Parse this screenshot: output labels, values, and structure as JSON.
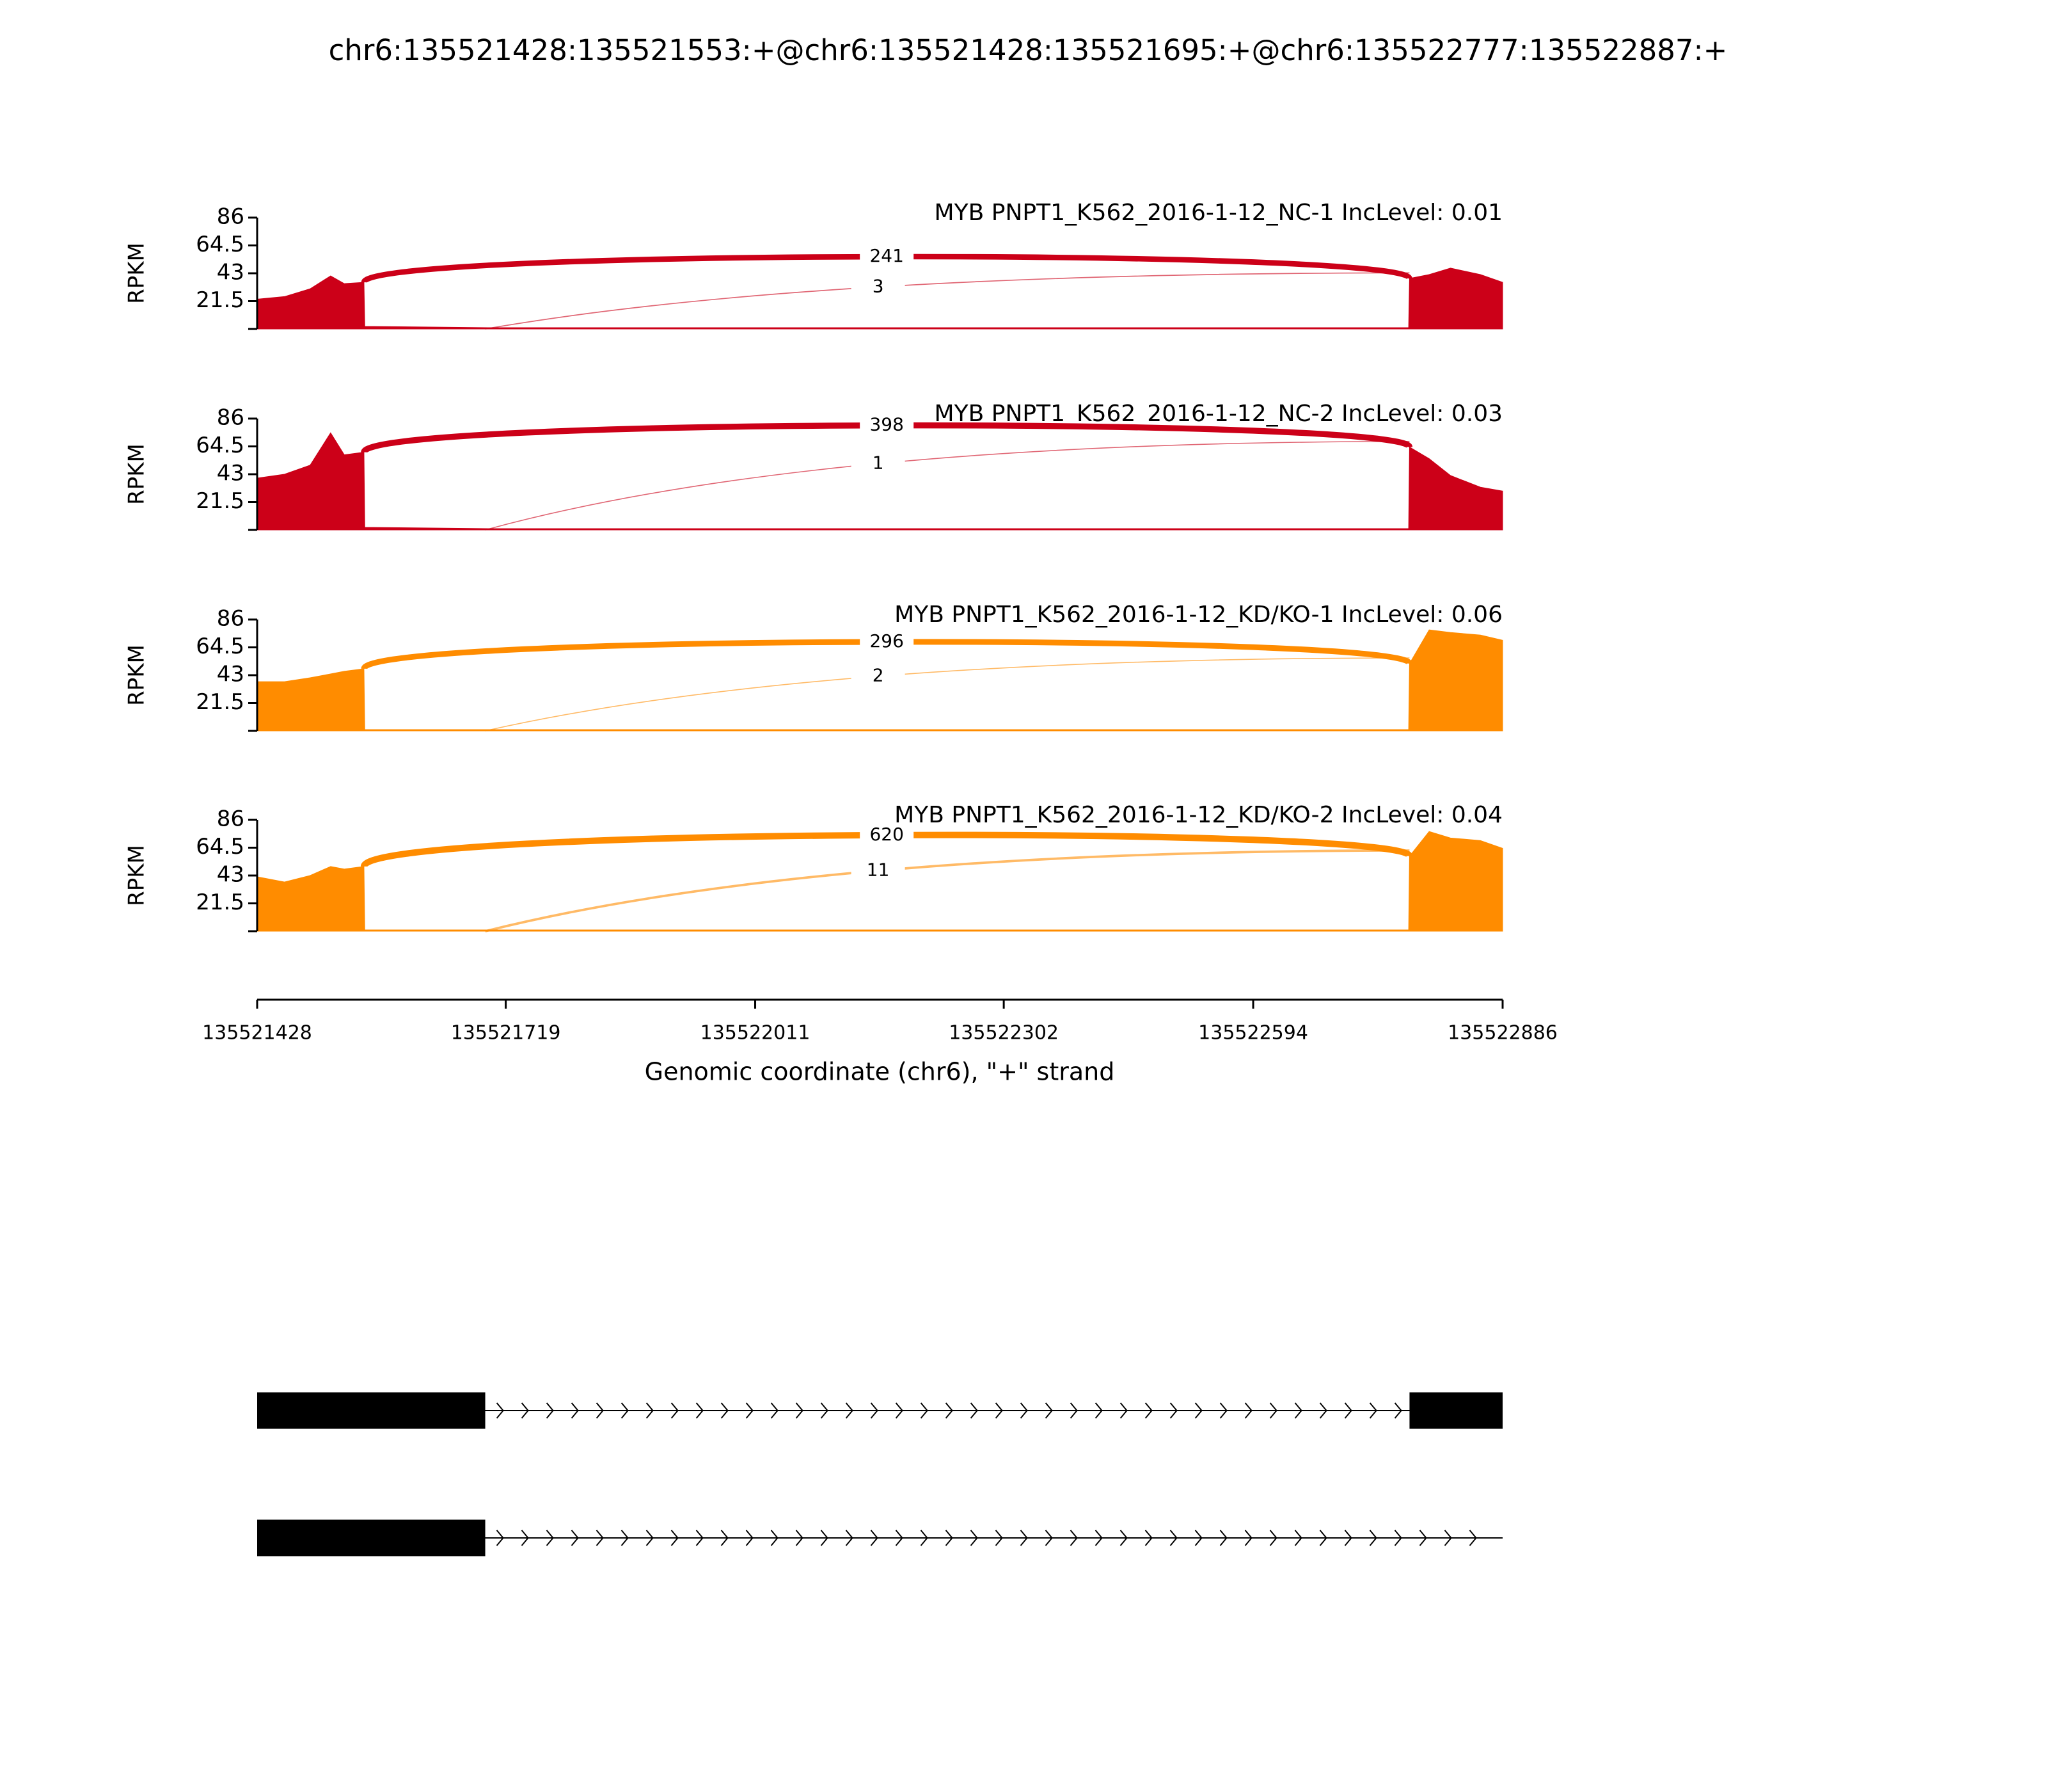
{
  "chart_data": {
    "type": "sashimi",
    "title": "chr6:135521428:135521553:+@chr6:135521428:135521695:+@chr6:135522777:135522887:+",
    "xlabel": "Genomic coordinate (chr6), \"+\" strand",
    "xlim": [
      135521428,
      135522886
    ],
    "xticks": [
      135521428,
      135521719,
      135522011,
      135522302,
      135522594,
      135522886
    ],
    "x": [
      135521428,
      135521460,
      135521490,
      135521514,
      135521530,
      135521553,
      135521554,
      135521700,
      135522776,
      135522777,
      135522800,
      135522825,
      135522860,
      135522886
    ],
    "panels": [
      {
        "label": "MYB PNPT1_K562_2016-1-12_NC-1 IncLevel: 0.01",
        "color": "#cc0018",
        "ylabel": "RPKM",
        "ylim": [
          0,
          86
        ],
        "yticks": [
          21.5,
          43,
          64.5,
          86
        ],
        "values": [
          23,
          25,
          31,
          41,
          35,
          36,
          2,
          1,
          1,
          39,
          42,
          47,
          42,
          36
        ],
        "junctions": [
          {
            "start": 135521553,
            "end": 135522777,
            "count": 241
          },
          {
            "start": 135521695,
            "end": 135522777,
            "count": 3
          }
        ]
      },
      {
        "label": "MYB PNPT1_K562_2016-1-12_NC-2 IncLevel: 0.03",
        "color": "#cc0018",
        "ylabel": "RPKM",
        "ylim": [
          0,
          86
        ],
        "yticks": [
          21.5,
          43,
          64.5,
          86
        ],
        "values": [
          40,
          43,
          50,
          75,
          58,
          60,
          2,
          1,
          1,
          64,
          55,
          42,
          33,
          30
        ],
        "junctions": [
          {
            "start": 135521553,
            "end": 135522777,
            "count": 398
          },
          {
            "start": 135521695,
            "end": 135522777,
            "count": 1
          }
        ]
      },
      {
        "label": "MYB PNPT1_K562_2016-1-12_KD/KO-1 IncLevel: 0.06",
        "color": "#ff8c00",
        "ylabel": "RPKM",
        "ylim": [
          0,
          86
        ],
        "yticks": [
          21.5,
          43,
          64.5,
          86
        ],
        "values": [
          38,
          38,
          41,
          44,
          46,
          48,
          1,
          1,
          1,
          52,
          78,
          76,
          74,
          70
        ],
        "junctions": [
          {
            "start": 135521553,
            "end": 135522777,
            "count": 296
          },
          {
            "start": 135521695,
            "end": 135522777,
            "count": 2
          }
        ]
      },
      {
        "label": "MYB PNPT1_K562_2016-1-12_KD/KO-2 IncLevel: 0.04",
        "color": "#ff8c00",
        "ylabel": "RPKM",
        "ylim": [
          0,
          86
        ],
        "yticks": [
          21.5,
          43,
          64.5,
          86
        ],
        "values": [
          42,
          38,
          43,
          50,
          48,
          50,
          1,
          1,
          1,
          58,
          77,
          72,
          70,
          64
        ],
        "junctions": [
          {
            "start": 135521553,
            "end": 135522777,
            "count": 620
          },
          {
            "start": 135521695,
            "end": 135522777,
            "count": 11
          }
        ]
      }
    ],
    "transcripts": [
      {
        "span": [
          135521428,
          135522886
        ],
        "exons": [
          [
            135521428,
            135521695
          ],
          [
            135522777,
            135522886
          ]
        ]
      },
      {
        "span": [
          135521428,
          135522886
        ],
        "exons": [
          [
            135521428,
            135521695
          ]
        ]
      }
    ]
  }
}
